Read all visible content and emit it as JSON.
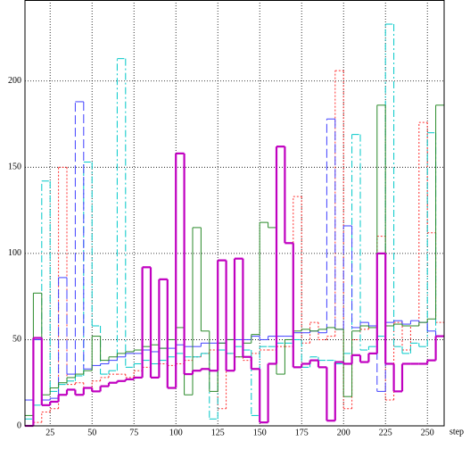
{
  "chart_data": {
    "type": "step",
    "xlabel": "step",
    "x": [
      10,
      15,
      20,
      25,
      30,
      35,
      40,
      45,
      50,
      55,
      60,
      65,
      70,
      75,
      80,
      85,
      90,
      95,
      100,
      105,
      110,
      115,
      120,
      125,
      130,
      135,
      140,
      145,
      150,
      155,
      160,
      165,
      170,
      175,
      180,
      185,
      190,
      195,
      200,
      205,
      210,
      215,
      220,
      225,
      230,
      235,
      240,
      245,
      250,
      255
    ],
    "xlim": [
      10,
      260
    ],
    "ylim": [
      0,
      247
    ],
    "xticks": [
      25,
      50,
      75,
      100,
      125,
      150,
      175,
      200,
      225,
      250
    ],
    "yticks": [
      0,
      50,
      100,
      150,
      200
    ],
    "grid": true,
    "series": [
      {
        "color": "#ff3030",
        "dash": "2 2",
        "width": 1,
        "values": [
          0,
          2,
          8,
          10,
          150,
          24,
          25,
          22,
          26,
          28,
          30,
          30,
          28,
          32,
          34,
          36,
          36,
          35,
          36,
          38,
          40,
          42,
          44,
          10,
          42,
          40,
          38,
          42,
          44,
          44,
          46,
          46,
          133,
          48,
          60,
          50,
          52,
          206,
          10,
          50,
          56,
          58,
          110,
          15,
          60,
          44,
          58,
          176,
          112,
          60
        ]
      },
      {
        "color": "#00c8c8",
        "dash": "8 3 2 3",
        "width": 1,
        "values": [
          4,
          12,
          142,
          20,
          24,
          26,
          29,
          153,
          58,
          30,
          32,
          213,
          34,
          36,
          38,
          36,
          38,
          40,
          42,
          40,
          40,
          42,
          4,
          44,
          42,
          46,
          44,
          6,
          46,
          46,
          48,
          48,
          50,
          34,
          40,
          38,
          38,
          36,
          42,
          169,
          44,
          46,
          52,
          233,
          46,
          42,
          48,
          46,
          170,
          52
        ]
      },
      {
        "color": "#4040ff",
        "dash": "10 4",
        "width": 1,
        "values": [
          15,
          50,
          15,
          16,
          86,
          30,
          188,
          33,
          35,
          36,
          38,
          40,
          42,
          42,
          44,
          43,
          45,
          45,
          47,
          46,
          46,
          48,
          48,
          48,
          50,
          50,
          50,
          52,
          50,
          52,
          52,
          52,
          54,
          54,
          55,
          54,
          178,
          56,
          116,
          57,
          60,
          58,
          20,
          60,
          61,
          59,
          61,
          60,
          55,
          52
        ]
      },
      {
        "color": "#2a8a2a",
        "dash": "none",
        "width": 1,
        "values": [
          6,
          77,
          18,
          22,
          25,
          28,
          30,
          32,
          52,
          38,
          40,
          42,
          43,
          44,
          46,
          47,
          45,
          50,
          57,
          18,
          115,
          55,
          20,
          48,
          50,
          40,
          48,
          53,
          118,
          115,
          30,
          50,
          55,
          56,
          55,
          56,
          57,
          56,
          17,
          55,
          58,
          57,
          186,
          58,
          59,
          58,
          58,
          60,
          62,
          186
        ]
      },
      {
        "color": "#c000c0",
        "dash": "none",
        "width": 2.2,
        "values": [
          0,
          51,
          12,
          14,
          18,
          21,
          18,
          22,
          20,
          23,
          25,
          26,
          27,
          28,
          92,
          28,
          85,
          22,
          158,
          30,
          32,
          33,
          32,
          96,
          32,
          97,
          40,
          33,
          2,
          36,
          162,
          106,
          34,
          36,
          38,
          34,
          3,
          37,
          36,
          41,
          37,
          42,
          100,
          36,
          20,
          36,
          36,
          36,
          38,
          52
        ]
      }
    ]
  }
}
